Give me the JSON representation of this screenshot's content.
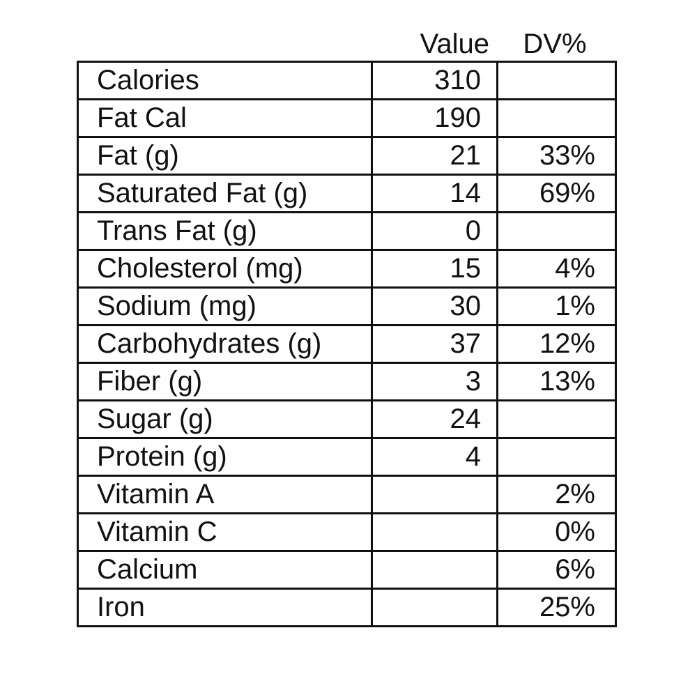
{
  "header": {
    "value_label": "Value",
    "dv_label": "DV%"
  },
  "rows": [
    {
      "name": "Calories",
      "value": "310",
      "dv": ""
    },
    {
      "name": "Fat Cal",
      "value": "190",
      "dv": ""
    },
    {
      "name": "Fat (g)",
      "value": "21",
      "dv": "33%"
    },
    {
      "name": "Saturated Fat (g)",
      "value": "14",
      "dv": "69%"
    },
    {
      "name": "Trans Fat (g)",
      "value": "0",
      "dv": ""
    },
    {
      "name": "Cholesterol (mg)",
      "value": "15",
      "dv": "4%"
    },
    {
      "name": "Sodium (mg)",
      "value": "30",
      "dv": "1%"
    },
    {
      "name": "Carbohydrates (g)",
      "value": "37",
      "dv": "12%"
    },
    {
      "name": "Fiber (g)",
      "value": "3",
      "dv": "13%"
    },
    {
      "name": "Sugar (g)",
      "value": "24",
      "dv": ""
    },
    {
      "name": "Protein (g)",
      "value": "4",
      "dv": ""
    },
    {
      "name": "Vitamin A",
      "value": "",
      "dv": "2%"
    },
    {
      "name": "Vitamin C",
      "value": "",
      "dv": "0%"
    },
    {
      "name": "Calcium",
      "value": "",
      "dv": "6%"
    },
    {
      "name": "Iron",
      "value": "",
      "dv": "25%"
    }
  ]
}
